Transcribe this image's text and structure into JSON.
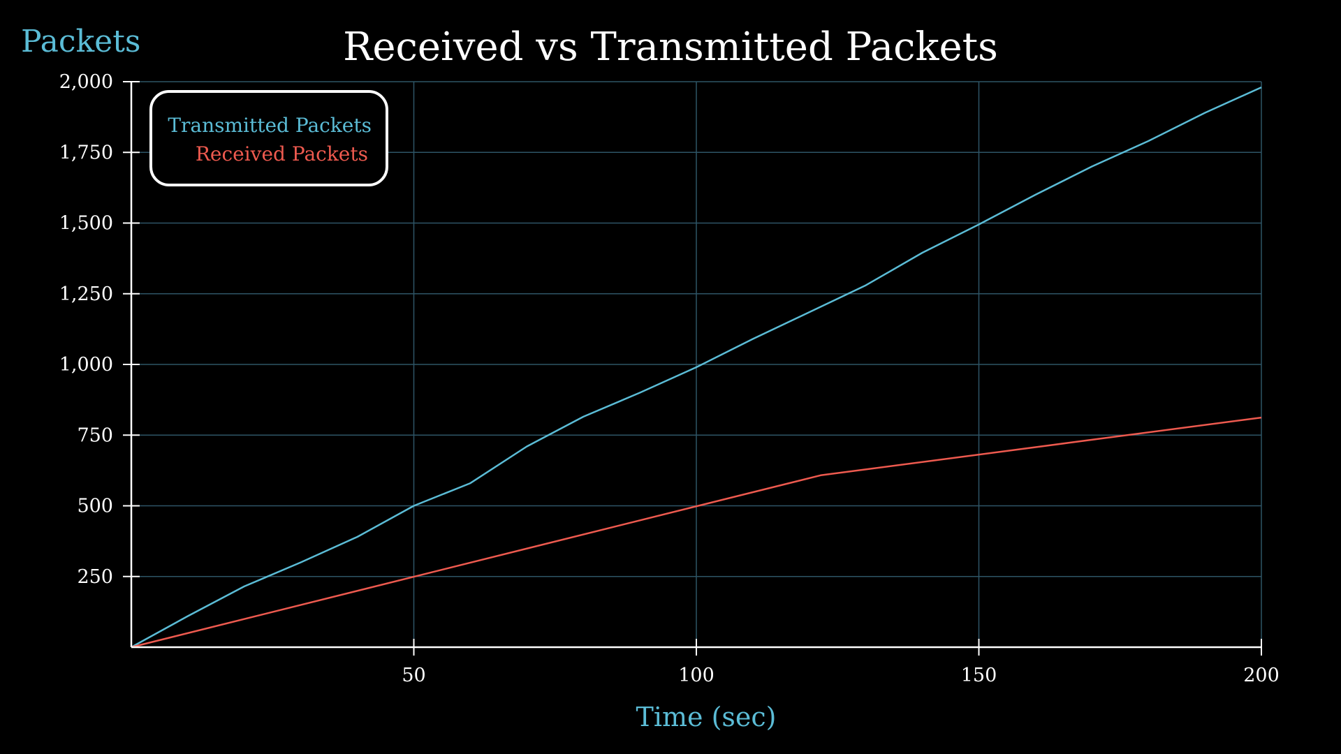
{
  "chart_data": {
    "type": "line",
    "title": "Received vs Transmitted Packets",
    "xlabel": "Time (sec)",
    "ylabel": "Packets",
    "xlim": [
      0,
      200
    ],
    "ylim": [
      0,
      2000
    ],
    "x_ticks": [
      50,
      100,
      150,
      200
    ],
    "x_tick_labels": [
      "50",
      "100",
      "150",
      "200"
    ],
    "y_ticks": [
      250,
      500,
      750,
      1000,
      1250,
      1500,
      1750,
      2000
    ],
    "y_tick_labels": [
      "250",
      "500",
      "750",
      "1,000",
      "1,250",
      "1,500",
      "1,750",
      "2,000"
    ],
    "grid": true,
    "legend_position": "top-left",
    "colors": {
      "background": "#000000",
      "axis": "#ffffff",
      "grid": "#2e5566",
      "label": "#5bbcd6",
      "transmitted": "#5bbcd6",
      "received": "#ee5a4f",
      "text": "#ffffff"
    },
    "series": [
      {
        "name": "Transmitted Packets",
        "color": "#5bbcd6",
        "x": [
          0,
          10,
          20,
          30,
          40,
          50,
          60,
          70,
          80,
          90,
          100,
          110,
          120,
          130,
          140,
          150,
          160,
          170,
          180,
          190,
          200
        ],
        "y": [
          0,
          110,
          215,
          300,
          390,
          500,
          580,
          710,
          815,
          900,
          990,
          1090,
          1185,
          1280,
          1395,
          1495,
          1600,
          1700,
          1790,
          1890,
          1980
        ]
      },
      {
        "name": "Received Packets",
        "color": "#ee5a4f",
        "x": [
          0,
          122,
          200
        ],
        "y": [
          0,
          608,
          812
        ]
      }
    ]
  }
}
